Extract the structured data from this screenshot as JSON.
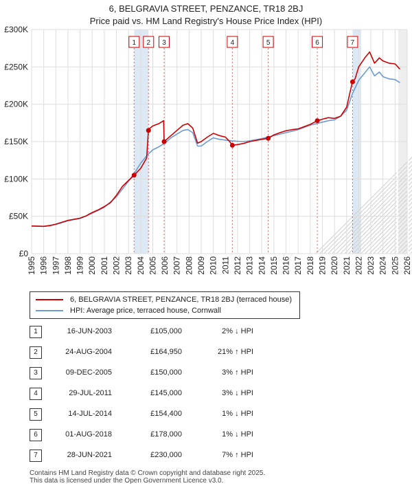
{
  "title_line1": "6, BELGRAVIA STREET, PENZANCE, TR18 2BJ",
  "title_line2": "Price paid vs. HM Land Registry's House Price Index (HPI)",
  "colors": {
    "property": "#cc0000",
    "hpi": "#6b9bd2",
    "band": "#dde8f5",
    "grid": "#dddddd"
  },
  "chart_data": {
    "type": "line",
    "title": "6, BELGRAVIA STREET, PENZANCE, TR18 2BJ — Price paid vs. HM Land Registry's House Price Index (HPI)",
    "xlabel": "",
    "ylabel": "",
    "xlim": [
      1995,
      2026
    ],
    "ylim": [
      0,
      300000
    ],
    "y_ticks": [
      {
        "value": 0,
        "label": "£0"
      },
      {
        "value": 50000,
        "label": "£50K"
      },
      {
        "value": 100000,
        "label": "£100K"
      },
      {
        "value": 150000,
        "label": "£150K"
      },
      {
        "value": 200000,
        "label": "£200K"
      },
      {
        "value": 250000,
        "label": "£250K"
      },
      {
        "value": 300000,
        "label": "£300K"
      }
    ],
    "x_ticks": [
      "1995",
      "1996",
      "1997",
      "1998",
      "1999",
      "2000",
      "2001",
      "2002",
      "2003",
      "2004",
      "2005",
      "2006",
      "2007",
      "2008",
      "2009",
      "2010",
      "2011",
      "2012",
      "2013",
      "2014",
      "2015",
      "2016",
      "2017",
      "2018",
      "2019",
      "2020",
      "2021",
      "2022",
      "2023",
      "2024",
      "2025",
      "2026"
    ],
    "sale_bands": [
      [
        2003.46,
        2004.65
      ],
      [
        2021.49,
        2022.2
      ]
    ],
    "future_from": 2025.25,
    "series": [
      {
        "name": "6, BELGRAVIA STREET, PENZANCE, TR18 2BJ (terraced house)",
        "color": "#cc0000",
        "x": [
          1995.0,
          1996.0,
          1996.5,
          1997.0,
          1997.5,
          1998.0,
          1998.5,
          1999.0,
          1999.5,
          2000.0,
          2000.5,
          2001.0,
          2001.5,
          2002.0,
          2002.5,
          2003.0,
          2003.46,
          2004.0,
          2004.5,
          2004.64,
          2004.7,
          2005.0,
          2005.5,
          2005.9,
          2005.94,
          2006.5,
          2007.0,
          2007.5,
          2007.9,
          2008.3,
          2008.7,
          2009.0,
          2009.5,
          2010.0,
          2010.5,
          2011.0,
          2011.3,
          2011.57,
          2012.0,
          2012.5,
          2013.0,
          2013.5,
          2014.0,
          2014.53,
          2015.0,
          2015.5,
          2016.0,
          2016.5,
          2017.0,
          2017.5,
          2018.0,
          2018.58,
          2019.0,
          2019.5,
          2020.0,
          2020.5,
          2021.0,
          2021.48,
          2021.7,
          2022.0,
          2022.5,
          2022.9,
          2023.3,
          2023.7,
          2024.0,
          2024.5,
          2025.0,
          2025.4
        ],
        "y": [
          37000,
          36500,
          37500,
          39500,
          42000,
          44500,
          46000,
          47500,
          50500,
          55000,
          58500,
          63000,
          68000,
          78000,
          90000,
          98000,
          105000,
          114000,
          128000,
          164950,
          167000,
          171000,
          174000,
          178000,
          150000,
          158000,
          165000,
          172000,
          174000,
          168000,
          148000,
          150000,
          156000,
          161000,
          158000,
          156000,
          151000,
          145000,
          146000,
          147500,
          150000,
          151500,
          153000,
          154400,
          159000,
          162000,
          164500,
          166000,
          167000,
          170000,
          173000,
          178000,
          180000,
          182000,
          181000,
          184000,
          196000,
          230000,
          234000,
          250000,
          262000,
          270000,
          255000,
          262000,
          258000,
          255000,
          254000,
          247000
        ]
      },
      {
        "name": "HPI: Average price, terraced house, Cornwall",
        "color": "#6b9bd2",
        "x": [
          1995.0,
          1996.0,
          1997.0,
          1998.0,
          1999.0,
          2000.0,
          2001.0,
          2002.0,
          2003.0,
          2003.5,
          2004.0,
          2004.5,
          2005.0,
          2005.5,
          2006.0,
          2006.5,
          2007.0,
          2007.5,
          2007.9,
          2008.3,
          2008.7,
          2009.0,
          2009.5,
          2010.0,
          2010.5,
          2011.0,
          2011.5,
          2012.0,
          2012.5,
          2013.0,
          2013.5,
          2014.0,
          2014.5,
          2015.0,
          2015.5,
          2016.0,
          2016.5,
          2017.0,
          2017.5,
          2018.0,
          2018.5,
          2019.0,
          2019.5,
          2020.0,
          2020.5,
          2021.0,
          2021.5,
          2022.0,
          2022.5,
          2022.9,
          2023.3,
          2023.7,
          2024.0,
          2024.5,
          2025.0,
          2025.4
        ],
        "y": [
          37000,
          36500,
          39000,
          44000,
          47000,
          54000,
          62000,
          76000,
          97000,
          108000,
          121000,
          131000,
          139000,
          143000,
          148000,
          155000,
          160000,
          165000,
          166000,
          162000,
          144000,
          144000,
          150000,
          155000,
          153000,
          152000,
          151000,
          150500,
          150000,
          151000,
          152500,
          154000,
          156000,
          158000,
          160000,
          162000,
          164000,
          166000,
          169000,
          172000,
          174000,
          176000,
          178000,
          179000,
          184000,
          192000,
          215000,
          232000,
          242000,
          250000,
          238000,
          243000,
          237000,
          234000,
          233000,
          229000
        ]
      }
    ],
    "sale_points": [
      {
        "num": "1",
        "x": 2003.46,
        "y": 105000
      },
      {
        "num": "2",
        "x": 2004.65,
        "y": 164950
      },
      {
        "num": "3",
        "x": 2005.94,
        "y": 150000
      },
      {
        "num": "4",
        "x": 2011.57,
        "y": 145000
      },
      {
        "num": "5",
        "x": 2014.53,
        "y": 154400
      },
      {
        "num": "6",
        "x": 2018.58,
        "y": 178000
      },
      {
        "num": "7",
        "x": 2021.49,
        "y": 230000
      }
    ]
  },
  "legend": {
    "property": "6, BELGRAVIA STREET, PENZANCE, TR18 2BJ (terraced house)",
    "hpi": "HPI: Average price, terraced house, Cornwall"
  },
  "sales": [
    {
      "num": "1",
      "date": "16-JUN-2003",
      "price": "£105,000",
      "hpi": "2% ↓ HPI"
    },
    {
      "num": "2",
      "date": "24-AUG-2004",
      "price": "£164,950",
      "hpi": "21% ↑ HPI"
    },
    {
      "num": "3",
      "date": "09-DEC-2005",
      "price": "£150,000",
      "hpi": "3% ↑ HPI"
    },
    {
      "num": "4",
      "date": "29-JUL-2011",
      "price": "£145,000",
      "hpi": "3% ↓ HPI"
    },
    {
      "num": "5",
      "date": "14-JUL-2014",
      "price": "£154,400",
      "hpi": "1% ↓ HPI"
    },
    {
      "num": "6",
      "date": "01-AUG-2018",
      "price": "£178,000",
      "hpi": "1% ↓ HPI"
    },
    {
      "num": "7",
      "date": "28-JUN-2021",
      "price": "£230,000",
      "hpi": "7% ↑ HPI"
    }
  ],
  "footer": {
    "line1": "Contains HM Land Registry data © Crown copyright and database right 2025.",
    "line2": "This data is licensed under the Open Government Licence v3.0."
  }
}
